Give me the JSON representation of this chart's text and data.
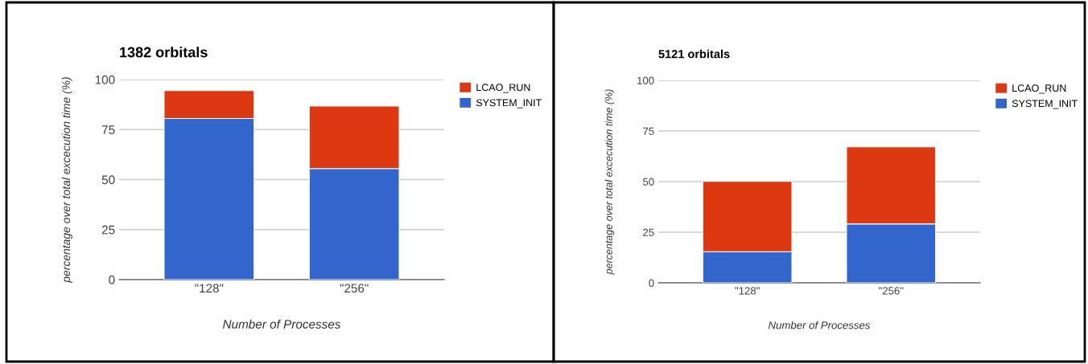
{
  "chart_data": [
    {
      "type": "bar",
      "title": "1382 orbitals",
      "xlabel": "Number of Processes",
      "ylabel": "percentage over total excecution time (%)",
      "categories": [
        "\"128\"",
        "\"256\""
      ],
      "stacked": true,
      "series": [
        {
          "name": "SYSTEM_INIT",
          "color": "#3366cc",
          "values": [
            80.5,
            55.5
          ]
        },
        {
          "name": "LCAO_RUN",
          "color": "#dc3912",
          "values": [
            14,
            31.3
          ]
        }
      ],
      "ylim": [
        0,
        100
      ],
      "yticks": [
        0,
        25,
        50,
        75,
        100
      ],
      "grid": "y",
      "legend": "top right"
    },
    {
      "type": "bar",
      "title": "5121 orbitals",
      "xlabel": "Number of Processes",
      "ylabel": "percentage over total excecution time (%)",
      "categories": [
        "\"128\"",
        "\"256\""
      ],
      "stacked": true,
      "series": [
        {
          "name": "SYSTEM_INIT",
          "color": "#3366cc",
          "values": [
            15.4,
            29.1
          ]
        },
        {
          "name": "LCAO_RUN",
          "color": "#dc3912",
          "values": [
            34.7,
            38.1
          ]
        }
      ],
      "ylim": [
        0,
        100
      ],
      "yticks": [
        0,
        25,
        50,
        75,
        100
      ],
      "grid": "y",
      "legend": "top right"
    }
  ]
}
